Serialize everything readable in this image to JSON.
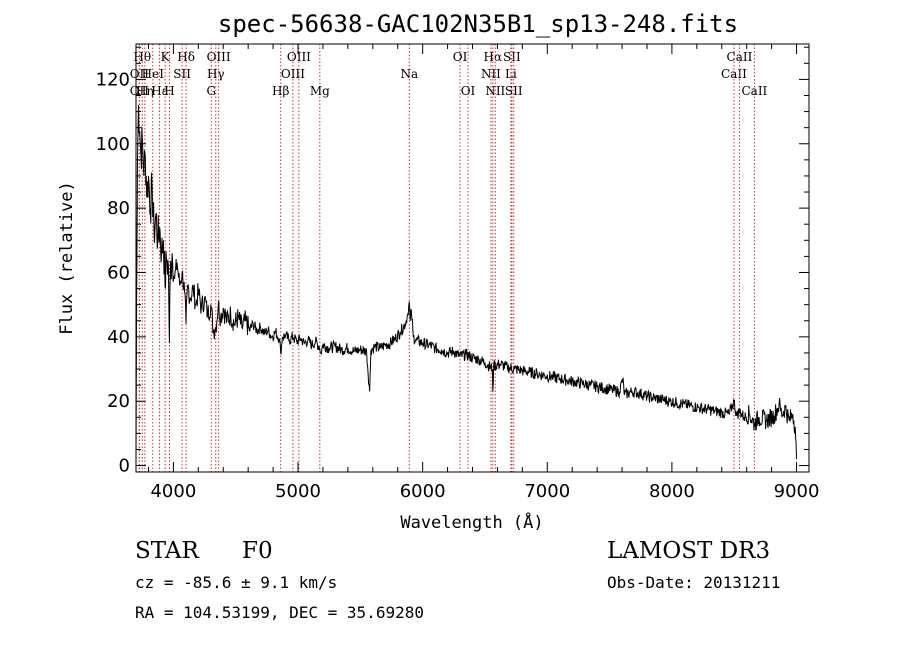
{
  "chart_data": {
    "type": "line",
    "title": "spec-56638-GAC102N35B1_sp13-248.fits",
    "xlabel": "Wavelength (Å)",
    "ylabel": "Flux (relative)",
    "xlim": [
      3700,
      9100
    ],
    "ylim": [
      -2,
      131
    ],
    "x_ticks": [
      4000,
      5000,
      6000,
      7000,
      8000,
      9000
    ],
    "y_ticks": [
      0,
      20,
      40,
      60,
      80,
      100,
      120
    ],
    "series": [
      {
        "name": "spectrum",
        "points": [
          [
            3700,
            2
          ],
          [
            3705,
            50
          ],
          [
            3712,
            95
          ],
          [
            3720,
            112
          ],
          [
            3730,
            104
          ],
          [
            3740,
            96
          ],
          [
            3750,
            102
          ],
          [
            3760,
            92
          ],
          [
            3775,
            96
          ],
          [
            3790,
            84
          ],
          [
            3800,
            90
          ],
          [
            3815,
            80
          ],
          [
            3830,
            86
          ],
          [
            3845,
            72
          ],
          [
            3860,
            78
          ],
          [
            3875,
            70
          ],
          [
            3890,
            74
          ],
          [
            3905,
            66
          ],
          [
            3920,
            70
          ],
          [
            3933,
            56
          ],
          [
            3945,
            64
          ],
          [
            3960,
            62
          ],
          [
            3968,
            38
          ],
          [
            3975,
            60
          ],
          [
            3990,
            66
          ],
          [
            4010,
            58
          ],
          [
            4030,
            63
          ],
          [
            4050,
            56
          ],
          [
            4070,
            60
          ],
          [
            4090,
            54
          ],
          [
            4101,
            44
          ],
          [
            4115,
            56
          ],
          [
            4135,
            52
          ],
          [
            4160,
            55
          ],
          [
            4180,
            50
          ],
          [
            4200,
            54
          ],
          [
            4225,
            49
          ],
          [
            4250,
            52
          ],
          [
            4275,
            47
          ],
          [
            4300,
            50
          ],
          [
            4320,
            42
          ],
          [
            4340,
            43
          ],
          [
            4360,
            50
          ],
          [
            4380,
            46
          ],
          [
            4400,
            49
          ],
          [
            4430,
            45
          ],
          [
            4460,
            47
          ],
          [
            4490,
            44
          ],
          [
            4520,
            46
          ],
          [
            4550,
            43
          ],
          [
            4580,
            45
          ],
          [
            4610,
            42
          ],
          [
            4640,
            44
          ],
          [
            4670,
            42
          ],
          [
            4700,
            43
          ],
          [
            4730,
            41
          ],
          [
            4760,
            42
          ],
          [
            4790,
            40
          ],
          [
            4820,
            41.5
          ],
          [
            4850,
            39.5
          ],
          [
            4861,
            35
          ],
          [
            4875,
            40
          ],
          [
            4900,
            40.5
          ],
          [
            4930,
            39
          ],
          [
            4960,
            40
          ],
          [
            4990,
            38.5
          ],
          [
            5020,
            39.5
          ],
          [
            5050,
            38
          ],
          [
            5080,
            39
          ],
          [
            5110,
            37.5
          ],
          [
            5140,
            38.5
          ],
          [
            5170,
            37
          ],
          [
            5183,
            35
          ],
          [
            5200,
            37.5
          ],
          [
            5250,
            36.5
          ],
          [
            5300,
            37
          ],
          [
            5350,
            36
          ],
          [
            5400,
            36.5
          ],
          [
            5450,
            35.5
          ],
          [
            5500,
            36
          ],
          [
            5550,
            35.5
          ],
          [
            5575,
            23
          ],
          [
            5585,
            36
          ],
          [
            5620,
            37
          ],
          [
            5660,
            36.5
          ],
          [
            5700,
            37.5
          ],
          [
            5740,
            38
          ],
          [
            5780,
            39.5
          ],
          [
            5820,
            41.5
          ],
          [
            5860,
            44
          ],
          [
            5880,
            47
          ],
          [
            5893,
            51
          ],
          [
            5900,
            45
          ],
          [
            5910,
            48
          ],
          [
            5925,
            40
          ],
          [
            5950,
            39
          ],
          [
            6000,
            38
          ],
          [
            6050,
            37.5
          ],
          [
            6100,
            36.5
          ],
          [
            6150,
            36
          ],
          [
            6200,
            35
          ],
          [
            6250,
            35.5
          ],
          [
            6300,
            34
          ],
          [
            6350,
            34.5
          ],
          [
            6400,
            33.5
          ],
          [
            6450,
            33
          ],
          [
            6500,
            32
          ],
          [
            6560,
            30
          ],
          [
            6563,
            23
          ],
          [
            6570,
            31
          ],
          [
            6620,
            31.5
          ],
          [
            6680,
            30.5
          ],
          [
            6740,
            30
          ],
          [
            6800,
            29.5
          ],
          [
            6860,
            29
          ],
          [
            6920,
            28.5
          ],
          [
            6980,
            28
          ],
          [
            7040,
            27.5
          ],
          [
            7100,
            27
          ],
          [
            7160,
            26.5
          ],
          [
            7220,
            26
          ],
          [
            7280,
            25.5
          ],
          [
            7340,
            25
          ],
          [
            7400,
            24.5
          ],
          [
            7460,
            24
          ],
          [
            7520,
            23.5
          ],
          [
            7580,
            23
          ],
          [
            7605,
            27
          ],
          [
            7620,
            22
          ],
          [
            7680,
            23
          ],
          [
            7740,
            22.5
          ],
          [
            7800,
            21.5
          ],
          [
            7860,
            21
          ],
          [
            7920,
            20.5
          ],
          [
            7980,
            20
          ],
          [
            8040,
            19.5
          ],
          [
            8100,
            19
          ],
          [
            8160,
            18.5
          ],
          [
            8220,
            18
          ],
          [
            8280,
            17.5
          ],
          [
            8340,
            17
          ],
          [
            8400,
            16.5
          ],
          [
            8460,
            16
          ],
          [
            8498,
            20
          ],
          [
            8520,
            15.5
          ],
          [
            8542,
            17
          ],
          [
            8580,
            15
          ],
          [
            8620,
            16
          ],
          [
            8662,
            13
          ],
          [
            8700,
            15
          ],
          [
            8760,
            14
          ],
          [
            8820,
            15.5
          ],
          [
            8860,
            19
          ],
          [
            8880,
            16
          ],
          [
            8910,
            18
          ],
          [
            8940,
            14
          ],
          [
            8970,
            16
          ],
          [
            8990,
            12
          ],
          [
            9000,
            2
          ]
        ]
      }
    ],
    "line_markers": [
      {
        "x": 3727,
        "label": "OII",
        "row": 2
      },
      {
        "x": 3727,
        "label": "OII",
        "row": 1
      },
      {
        "x": 3750,
        "label": "Hθ",
        "row": 0
      },
      {
        "x": 3771,
        "label": "Hη",
        "row": 2
      },
      {
        "x": 3835,
        "label": "HeI",
        "row": 1
      },
      {
        "x": 3889,
        "label": "Hε",
        "row": 2
      },
      {
        "x": 3934,
        "label": "K",
        "row": 0
      },
      {
        "x": 3969,
        "label": "H",
        "row": 2
      },
      {
        "x": 4070,
        "label": "SII",
        "row": 1
      },
      {
        "x": 4102,
        "label": "Hδ",
        "row": 0
      },
      {
        "x": 4304,
        "label": "G",
        "row": 2
      },
      {
        "x": 4340,
        "label": "Hγ",
        "row": 1
      },
      {
        "x": 4363,
        "label": "OIII",
        "row": 0
      },
      {
        "x": 4861,
        "label": "Hβ",
        "row": 2
      },
      {
        "x": 4959,
        "label": "OIII",
        "row": 1
      },
      {
        "x": 5007,
        "label": "OIII",
        "row": 0
      },
      {
        "x": 5175,
        "label": "Mg",
        "row": 2
      },
      {
        "x": 5893,
        "label": "Na",
        "row": 1
      },
      {
        "x": 6300,
        "label": "OI",
        "row": 0
      },
      {
        "x": 6364,
        "label": "OI",
        "row": 2
      },
      {
        "x": 6548,
        "label": "NII",
        "row": 1
      },
      {
        "x": 6563,
        "label": "Hα",
        "row": 0
      },
      {
        "x": 6583,
        "label": "NII",
        "row": 2
      },
      {
        "x": 6708,
        "label": "Li",
        "row": 1
      },
      {
        "x": 6716,
        "label": "SII",
        "row": 0
      },
      {
        "x": 6731,
        "label": "SII",
        "row": 2
      },
      {
        "x": 8498,
        "label": "CaII",
        "row": 1
      },
      {
        "x": 8542,
        "label": "CaII",
        "row": 0
      },
      {
        "x": 8662,
        "label": "CaII",
        "row": 2
      }
    ]
  },
  "footer": {
    "object_class": "STAR",
    "subclass": "F0",
    "survey": "LAMOST DR3",
    "redshift_text": "cz = -85.6 ± 9.1 km/s",
    "obs_date": "Obs-Date: 20131211",
    "coords_text": "RA = 104.53199, DEC =  35.69280"
  }
}
